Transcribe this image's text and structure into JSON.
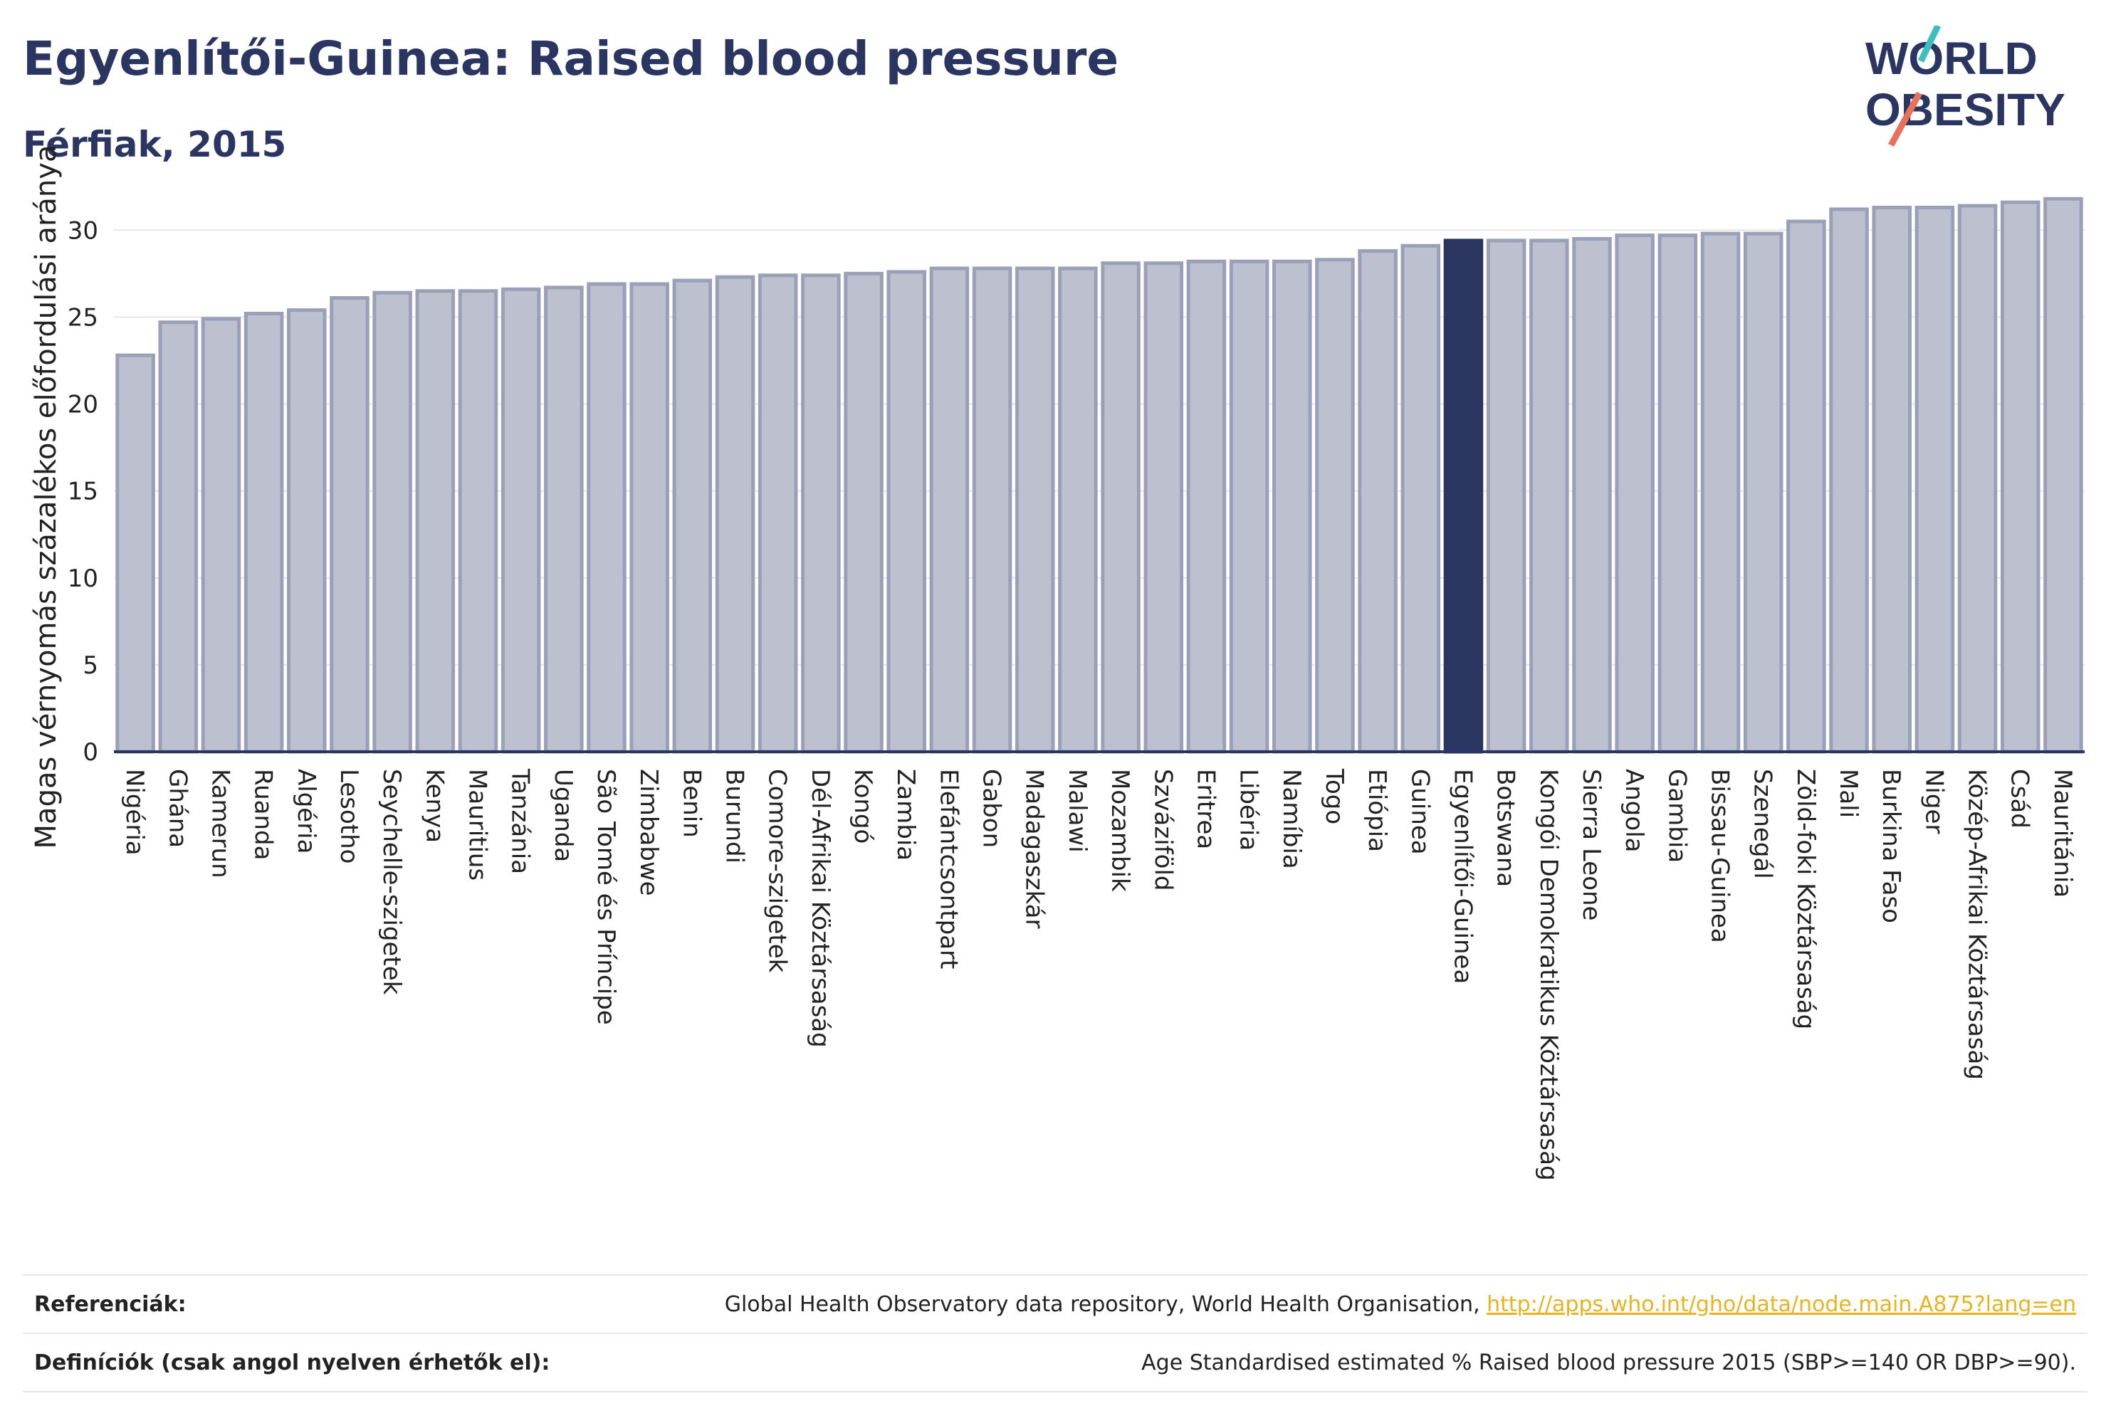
{
  "header": {
    "title": "Egyenlítői-Guinea: Raised blood pressure",
    "subtitle": "Férfiak, 2015"
  },
  "logo": {
    "line1": "WORLD",
    "line2": "OBESITY"
  },
  "chart_data": {
    "type": "bar",
    "ylabel": "Magas vérnyomás százalékos előfordulási aránya",
    "ylim": [
      0,
      33
    ],
    "yticks": [
      0,
      5,
      10,
      15,
      20,
      25,
      30
    ],
    "highlight": "Egyenlítői-Guinea",
    "colors": {
      "bar": "#bcc0cf",
      "bar_border": "#9aa0b8",
      "highlight": "#2b3561",
      "axis": "#2b3561",
      "grid": "#e5e5e5"
    },
    "categories": [
      "Nigéria",
      "Ghána",
      "Kamerun",
      "Ruanda",
      "Algéria",
      "Lesotho",
      "Seychelle-szigetek",
      "Kenya",
      "Mauritius",
      "Tanzánia",
      "Uganda",
      "São Tomé és Príncipe",
      "Zimbabwe",
      "Benin",
      "Burundi",
      "Comore-szigetek",
      "Dél-Afrikai Köztársaság",
      "Kongó",
      "Zambia",
      "Elefántcsontpart",
      "Gabon",
      "Madagaszkár",
      "Malawi",
      "Mozambik",
      "Szváziföld",
      "Eritrea",
      "Libéria",
      "Namíbia",
      "Togo",
      "Etiópia",
      "Guinea",
      "Egyenlítői-Guinea",
      "Botswana",
      "Kongói Demokratikus Köztársaság",
      "Sierra Leone",
      "Angola",
      "Gambia",
      "Bissau-Guinea",
      "Szenegál",
      "Zöld-foki Köztársaság",
      "Mali",
      "Burkina Faso",
      "Niger",
      "Közép-Afrikai Köztársaság",
      "Csád",
      "Mauritánia"
    ],
    "values": [
      22.8,
      24.7,
      24.9,
      25.2,
      25.4,
      26.1,
      26.4,
      26.5,
      26.5,
      26.6,
      26.7,
      26.9,
      26.9,
      27.1,
      27.3,
      27.4,
      27.4,
      27.5,
      27.6,
      27.8,
      27.8,
      27.8,
      27.8,
      28.1,
      28.1,
      28.2,
      28.2,
      28.2,
      28.3,
      28.8,
      29.1,
      29.4,
      29.4,
      29.4,
      29.5,
      29.7,
      29.7,
      29.8,
      29.8,
      30.5,
      31.2,
      31.3,
      31.3,
      31.4,
      31.6,
      31.8
    ]
  },
  "footer": {
    "references_label": "Referenciák:",
    "references_text": "Global Health Observatory data repository, World Health Organisation, ",
    "references_link": "http://apps.who.int/gho/data/node.main.A875?lang=en",
    "definitions_label": "Definíciók (csak angol nyelven érhetők el):",
    "definitions_text": "Age Standardised estimated % Raised blood pressure 2015 (SBP>=140 OR DBP>=90)."
  }
}
